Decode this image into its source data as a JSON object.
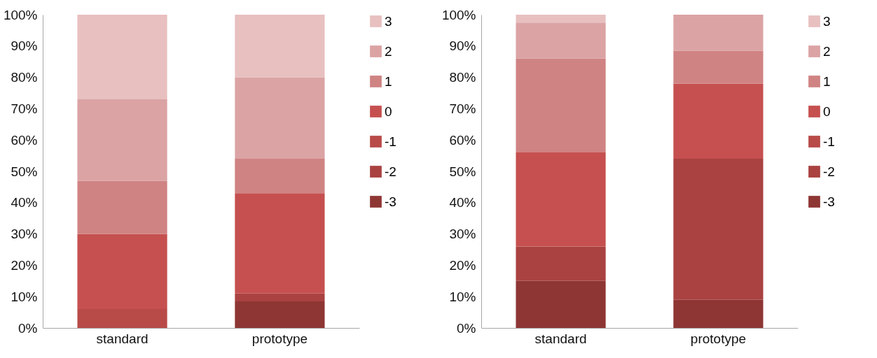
{
  "chart_data": [
    {
      "type": "bar",
      "stacked": true,
      "categories": [
        "standard",
        "prototype"
      ],
      "legend": "right",
      "ylim": [
        0,
        100
      ],
      "yticks": [
        {
          "value": 0,
          "label": "0%"
        },
        {
          "value": 10,
          "label": "10%"
        },
        {
          "value": 20,
          "label": "20%"
        },
        {
          "value": 30,
          "label": "30%"
        },
        {
          "value": 40,
          "label": "40%"
        },
        {
          "value": 50,
          "label": "50%"
        },
        {
          "value": 60,
          "label": "60%"
        },
        {
          "value": 70,
          "label": "70%"
        },
        {
          "value": 80,
          "label": "80%"
        },
        {
          "value": 90,
          "label": "90%"
        },
        {
          "value": 100,
          "label": "100%"
        }
      ],
      "series": [
        {
          "name": "-3",
          "color": "#8e3634",
          "values": [
            null,
            8.5
          ]
        },
        {
          "name": "-2",
          "color": "#a94241",
          "values": [
            null,
            2.5
          ]
        },
        {
          "name": "-1",
          "color": "#b84a48",
          "values": [
            6,
            null
          ]
        },
        {
          "name": "0",
          "color": "#c5504f",
          "values": [
            24,
            32
          ]
        },
        {
          "name": "1",
          "color": "#d08383",
          "values": [
            17,
            11
          ]
        },
        {
          "name": "2",
          "color": "#dba3a4",
          "values": [
            26,
            26
          ]
        },
        {
          "name": "3",
          "color": "#e8c0c0",
          "values": [
            27,
            20
          ]
        }
      ]
    },
    {
      "type": "bar",
      "stacked": true,
      "categories": [
        "standard",
        "prototype"
      ],
      "legend": "right",
      "ylim": [
        0,
        100
      ],
      "yticks": [
        {
          "value": 0,
          "label": "0%"
        },
        {
          "value": 10,
          "label": "10%"
        },
        {
          "value": 20,
          "label": "20%"
        },
        {
          "value": 30,
          "label": "30%"
        },
        {
          "value": 40,
          "label": "40%"
        },
        {
          "value": 50,
          "label": "50%"
        },
        {
          "value": 60,
          "label": "60%"
        },
        {
          "value": 70,
          "label": "70%"
        },
        {
          "value": 80,
          "label": "80%"
        },
        {
          "value": 90,
          "label": "90%"
        },
        {
          "value": 100,
          "label": "100%"
        }
      ],
      "series": [
        {
          "name": "-3",
          "color": "#8e3634",
          "values": [
            15,
            9
          ]
        },
        {
          "name": "-2",
          "color": "#a94241",
          "values": [
            11,
            45
          ]
        },
        {
          "name": "-1",
          "color": "#b84a48",
          "values": [
            null,
            null
          ]
        },
        {
          "name": "0",
          "color": "#c5504f",
          "values": [
            30,
            24
          ]
        },
        {
          "name": "1",
          "color": "#d08383",
          "values": [
            30,
            10.5
          ]
        },
        {
          "name": "2",
          "color": "#dba3a4",
          "values": [
            11.5,
            11.5
          ]
        },
        {
          "name": "3",
          "color": "#e8c0c0",
          "values": [
            2.5,
            null
          ]
        }
      ]
    }
  ]
}
